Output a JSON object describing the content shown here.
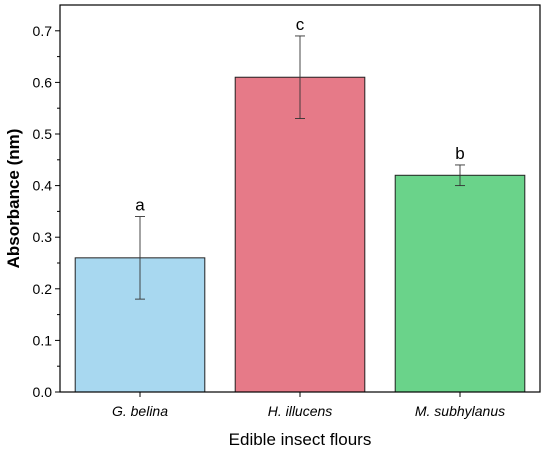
{
  "chart_data": {
    "type": "bar",
    "categories": [
      "G. belina",
      "H. illucens",
      "M. subhylanus"
    ],
    "values": [
      0.26,
      0.61,
      0.42
    ],
    "errors": [
      0.08,
      0.08,
      0.02
    ],
    "significance_letters": [
      "a",
      "c",
      "b"
    ],
    "colors": [
      "#a8d8f0",
      "#e67a88",
      "#6ad38a"
    ],
    "xlabel": "Edible insect flours",
    "ylabel": "Absorbance (nm)",
    "ylim": [
      0,
      0.75
    ],
    "yticks": [
      "0.0",
      "0.1",
      "0.2",
      "0.3",
      "0.4",
      "0.5",
      "0.6",
      "0.7"
    ],
    "grid": false,
    "legend": "none"
  }
}
